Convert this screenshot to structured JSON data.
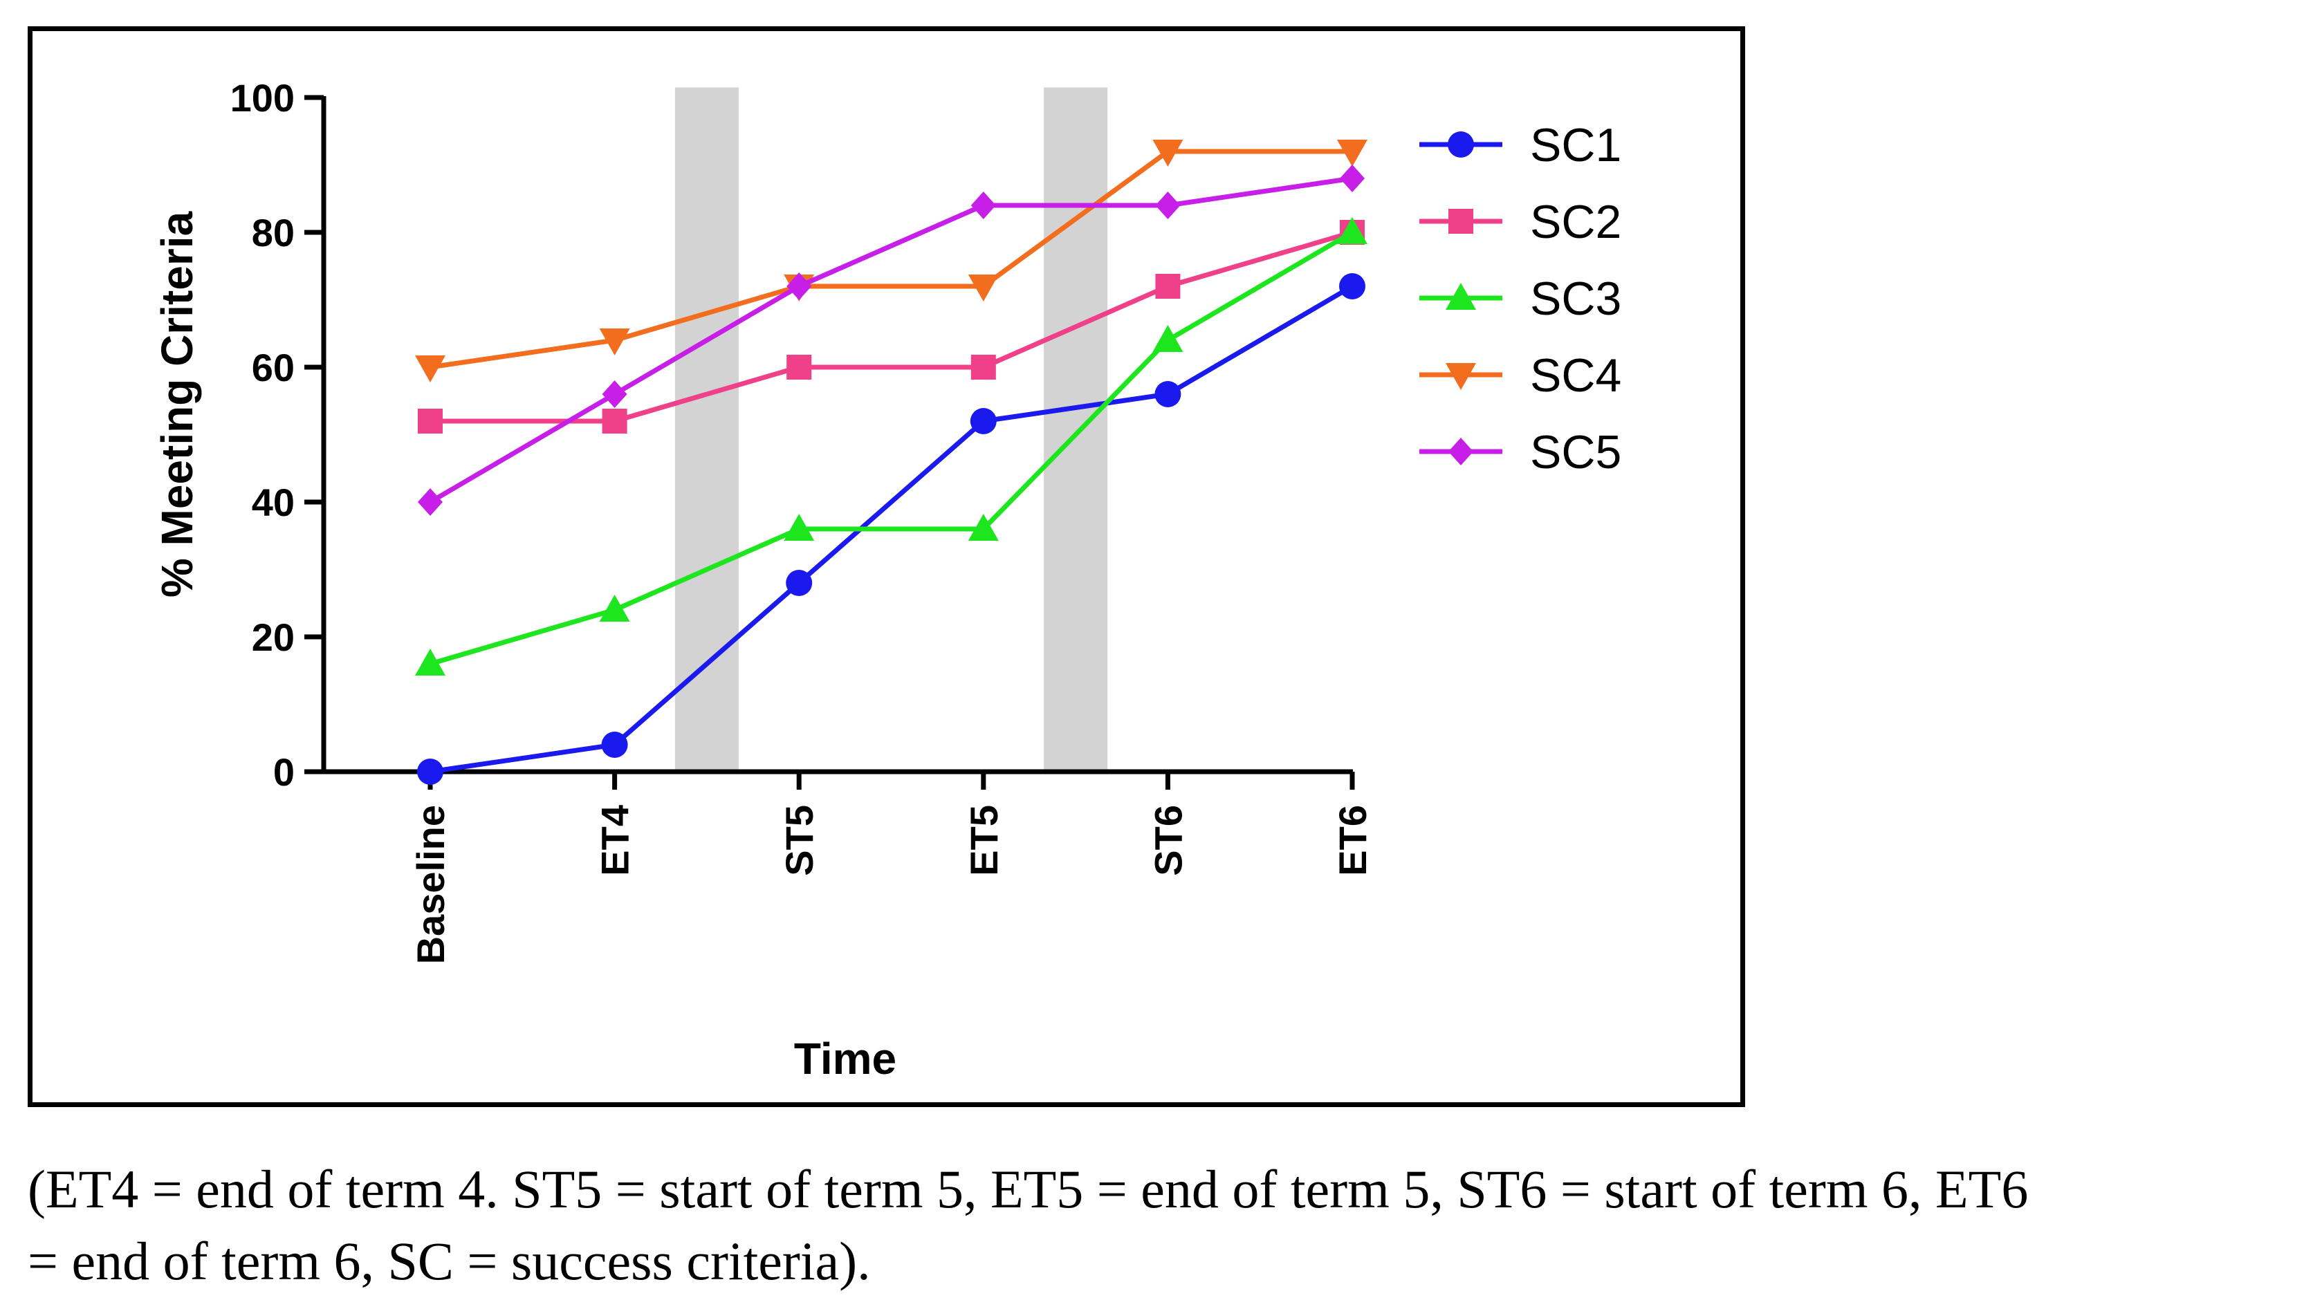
{
  "chart_data": {
    "type": "line",
    "xlabel": "Time",
    "ylabel": "% Meeting Criteria",
    "ylim": [
      0,
      100
    ],
    "yticks": [
      0,
      20,
      40,
      60,
      80,
      100
    ],
    "categories": [
      "Baseline",
      "ET4",
      "ST5",
      "ET5",
      "ST6",
      "ET6"
    ],
    "shaded_intervals": [
      [
        "ET4",
        "ST5"
      ],
      [
        "ET5",
        "ST6"
      ]
    ],
    "shade_color": "#d3d3d3",
    "legend_position": "right",
    "series": [
      {
        "name": "SC1",
        "color": "#1a1aef",
        "marker": "circle",
        "values": [
          0,
          4,
          28,
          52,
          56,
          72
        ]
      },
      {
        "name": "SC2",
        "color": "#f0408a",
        "marker": "square",
        "values": [
          52,
          52,
          60,
          60,
          72,
          80
        ]
      },
      {
        "name": "SC3",
        "color": "#1ee61e",
        "marker": "triangle-up",
        "values": [
          16,
          24,
          36,
          36,
          64,
          80
        ]
      },
      {
        "name": "SC4",
        "color": "#f26d1d",
        "marker": "triangle-down",
        "values": [
          60,
          64,
          72,
          72,
          92,
          92
        ]
      },
      {
        "name": "SC5",
        "color": "#c71ee8",
        "marker": "diamond",
        "values": [
          40,
          56,
          72,
          84,
          84,
          88
        ]
      }
    ]
  },
  "caption": {
    "line1": "(ET4 = end of term 4. ST5 = start of term 5, ET5 = end of term 5, ST6 = start of term 6, ET6",
    "line2": "= end of term 6, SC = success criteria)."
  }
}
